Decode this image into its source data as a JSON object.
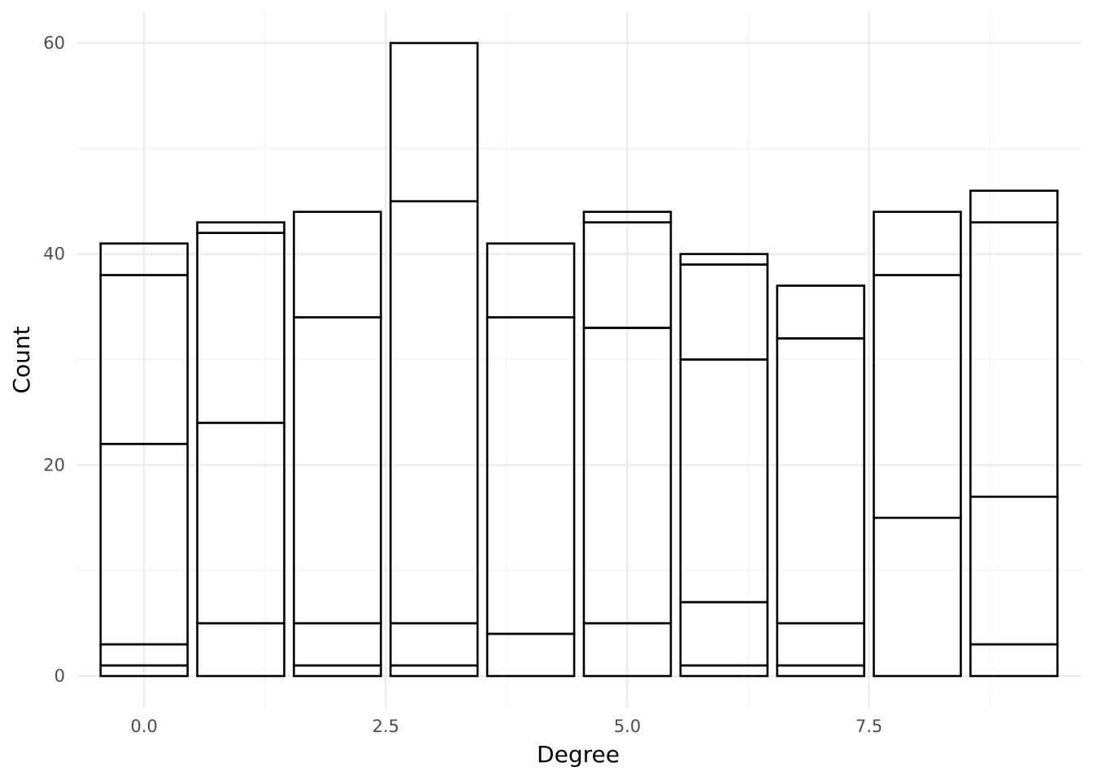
{
  "chart_data": {
    "type": "bar",
    "stacked": true,
    "xlabel": "Degree",
    "ylabel": "Count",
    "xlim": [
      -0.7,
      9.7
    ],
    "ylim": [
      -3,
      63
    ],
    "x_ticks": [
      0,
      2.5,
      5,
      7.5
    ],
    "x_tick_labels": [
      "0.0",
      "2.5",
      "5.0",
      "7.5"
    ],
    "y_ticks": [
      0,
      20,
      40,
      60
    ],
    "y_tick_labels": [
      "0",
      "20",
      "40",
      "60"
    ],
    "bar_width": 0.9,
    "grid": true,
    "fill_color": "#ffffff",
    "edge_color": "#000000",
    "bars": [
      {
        "x": 0,
        "boundaries": [
          0,
          1,
          3,
          22,
          38,
          41
        ]
      },
      {
        "x": 1,
        "boundaries": [
          0,
          5,
          24,
          42,
          43
        ]
      },
      {
        "x": 2,
        "boundaries": [
          0,
          1,
          5,
          34,
          44
        ]
      },
      {
        "x": 3,
        "boundaries": [
          0,
          1,
          5,
          45,
          60
        ]
      },
      {
        "x": 4,
        "boundaries": [
          0,
          4,
          34,
          41
        ]
      },
      {
        "x": 5,
        "boundaries": [
          0,
          5,
          33,
          43,
          44
        ]
      },
      {
        "x": 6,
        "boundaries": [
          0,
          1,
          7,
          30,
          39,
          40
        ]
      },
      {
        "x": 7,
        "boundaries": [
          0,
          1,
          5,
          32,
          37
        ]
      },
      {
        "x": 8,
        "boundaries": [
          0,
          15,
          38,
          44
        ]
      },
      {
        "x": 9,
        "boundaries": [
          0,
          3,
          17,
          43,
          46
        ]
      }
    ]
  }
}
